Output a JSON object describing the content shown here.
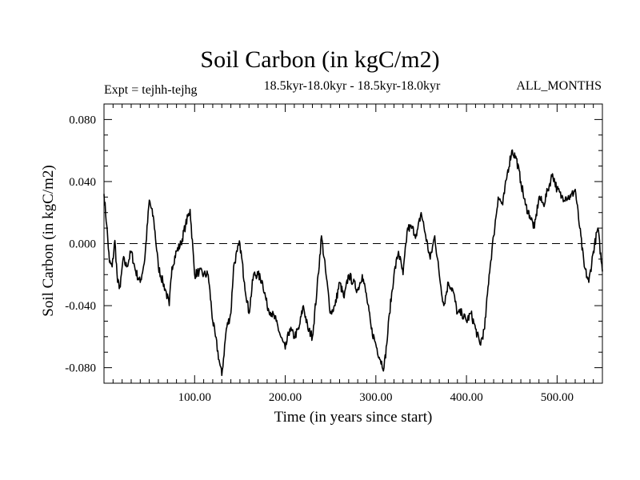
{
  "header": {
    "title": "Soil Carbon (in kgC/m2)",
    "subtitle": "18.5kyr-18.0kyr - 18.5kyr-18.0kyr",
    "experiment": "Expt = tejhh-tejhg",
    "months": "ALL_MONTHS"
  },
  "chart_data": {
    "type": "line",
    "title": "Soil Carbon (in kgC/m2)",
    "xlabel": "Time (in years since start)",
    "ylabel": "Soil Carbon (in kgC/m2)",
    "xlim": [
      0,
      550
    ],
    "ylim": [
      -0.09,
      0.09
    ],
    "x_ticks": [
      100,
      200,
      300,
      400,
      500
    ],
    "x_tick_labels": [
      "100.00",
      "200.00",
      "300.00",
      "400.00",
      "500.00"
    ],
    "y_ticks": [
      -0.08,
      -0.04,
      0.0,
      0.04,
      0.08
    ],
    "y_tick_labels": [
      "-0.080",
      "-0.040",
      "0.000",
      "0.040",
      "0.080"
    ],
    "reference_line": 0.0,
    "grid": false,
    "line_color": "#000000",
    "series": [
      {
        "x": [
          0,
          3,
          6,
          9,
          12,
          15,
          18,
          21,
          25,
          30,
          35,
          40,
          45,
          50,
          55,
          60,
          65,
          68,
          72,
          75,
          80,
          85,
          90,
          95,
          100,
          105,
          110,
          115,
          120,
          123,
          127,
          130,
          135,
          140,
          143,
          147,
          150,
          155,
          160,
          165,
          170,
          175,
          180,
          185,
          190,
          195,
          200,
          205,
          210,
          215,
          220,
          225,
          230,
          235,
          240,
          245,
          250,
          255,
          260,
          265,
          270,
          275,
          280,
          285,
          290,
          295,
          300,
          305,
          309,
          312,
          315,
          320,
          325,
          330,
          335,
          340,
          345,
          350,
          355,
          360,
          365,
          370,
          375,
          380,
          385,
          390,
          395,
          400,
          405,
          410,
          415,
          420,
          425,
          430,
          435,
          440,
          445,
          450,
          455,
          460,
          465,
          470,
          475,
          480,
          485,
          490,
          495,
          500,
          505,
          510,
          515,
          520,
          525,
          530,
          535,
          540,
          545,
          550
        ],
        "y": [
          0.032,
          0.012,
          -0.012,
          -0.015,
          0.002,
          -0.025,
          -0.028,
          -0.01,
          -0.015,
          -0.005,
          -0.018,
          -0.025,
          -0.01,
          0.028,
          0.015,
          -0.015,
          -0.025,
          -0.03,
          -0.04,
          -0.015,
          -0.005,
          0.0,
          0.012,
          0.022,
          -0.02,
          -0.018,
          -0.02,
          -0.02,
          -0.05,
          -0.06,
          -0.075,
          -0.085,
          -0.055,
          -0.045,
          -0.015,
          -0.005,
          0.0,
          -0.025,
          -0.045,
          -0.02,
          -0.02,
          -0.025,
          -0.04,
          -0.045,
          -0.05,
          -0.06,
          -0.068,
          -0.055,
          -0.06,
          -0.055,
          -0.04,
          -0.055,
          -0.06,
          -0.03,
          0.005,
          -0.02,
          -0.045,
          -0.04,
          -0.025,
          -0.035,
          -0.02,
          -0.025,
          -0.03,
          -0.02,
          -0.035,
          -0.055,
          -0.065,
          -0.075,
          -0.08,
          -0.065,
          -0.045,
          -0.02,
          -0.005,
          -0.02,
          0.01,
          0.01,
          0.005,
          0.02,
          0.005,
          -0.01,
          0.005,
          -0.02,
          -0.04,
          -0.025,
          -0.03,
          -0.045,
          -0.045,
          -0.05,
          -0.045,
          -0.055,
          -0.065,
          -0.055,
          -0.02,
          0.005,
          0.03,
          0.025,
          0.045,
          0.06,
          0.055,
          0.04,
          0.025,
          0.018,
          0.01,
          0.03,
          0.025,
          0.035,
          0.045,
          0.035,
          0.03,
          0.03,
          0.03,
          0.035,
          0.01,
          -0.015,
          -0.025,
          -0.005,
          0.01,
          -0.018
        ]
      }
    ]
  }
}
